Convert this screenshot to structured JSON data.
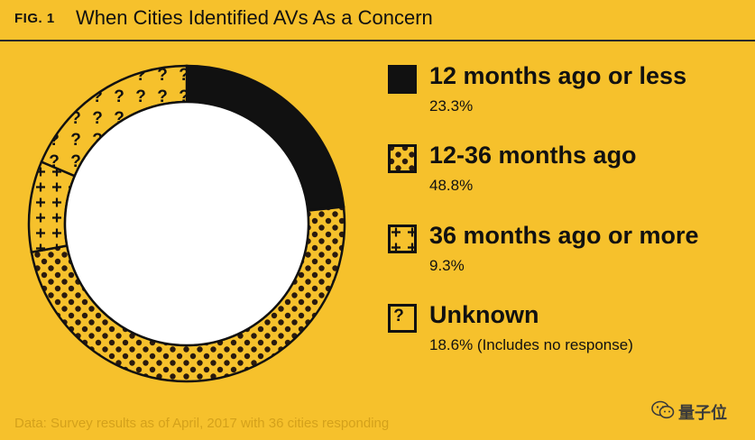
{
  "header": {
    "fig_label": "FIG. 1",
    "title": "When Cities Identified AVs As a Concern"
  },
  "chart_data": {
    "type": "pie",
    "style": "donut",
    "title": "When Cities Identified AVs As a Concern",
    "legend_placement": "right",
    "slices": [
      {
        "label": "12 months ago or less",
        "value": 23.3,
        "value_text": "23.3%",
        "pattern": "solid",
        "color": "#111111"
      },
      {
        "label": "12-36 months ago",
        "value": 48.8,
        "value_text": "48.8%",
        "pattern": "dots",
        "color": "#111111"
      },
      {
        "label": "36 months ago or more",
        "value": 9.3,
        "value_text": "9.3%",
        "pattern": "plus",
        "color": "#111111"
      },
      {
        "label": "Unknown",
        "value": 18.6,
        "value_text": "18.6% (Includes no response)",
        "pattern": "question",
        "color": "#111111"
      }
    ]
  },
  "footer": {
    "source": "Data: Survey results as of April, 2017 with 36 cities responding"
  },
  "watermark": {
    "text": "量子位",
    "icon": "wechat-icon"
  },
  "colors": {
    "background": "#F6C12C",
    "ink": "#111111"
  }
}
